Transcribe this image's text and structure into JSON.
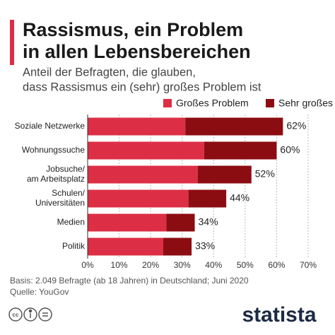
{
  "chart_data": {
    "type": "stacked-bar-horizontal",
    "title": [
      "Rassismus, ein Problem",
      "in allen Lebensbereichen"
    ],
    "subtitle": [
      "Anteil der Befragten, die glauben,",
      "dass Rassismus ein (sehr) großes Problem ist"
    ],
    "categories": [
      [
        "Soziale Netzwerke"
      ],
      [
        "Wohnungssuche"
      ],
      [
        "Jobsuche/",
        "am Arbeitsplatz"
      ],
      [
        "Schulen/",
        "Universitäten"
      ],
      [
        "Medien"
      ],
      [
        "Politik"
      ]
    ],
    "series": [
      {
        "name": "Großes Problem",
        "color": "#dc2f45",
        "values": [
          31,
          37,
          35,
          32,
          25,
          24
        ]
      },
      {
        "name": "Sehr großes Problem",
        "color": "#8b0d12",
        "values": [
          31,
          23,
          17,
          12,
          9,
          9
        ]
      }
    ],
    "totals": [
      62,
      60,
      52,
      44,
      34,
      33
    ],
    "total_labels": [
      "62%",
      "60%",
      "52%",
      "44%",
      "34%",
      "33%"
    ],
    "xlim": [
      0,
      70
    ],
    "xticks": [
      {
        "value": 0,
        "label": "0%"
      },
      {
        "value": 10,
        "label": "10%"
      },
      {
        "value": 20,
        "label": "20%"
      },
      {
        "value": 30,
        "label": "30%"
      },
      {
        "value": 40,
        "label": "40%"
      },
      {
        "value": 50,
        "label": "50%"
      },
      {
        "value": 60,
        "label": "60%"
      },
      {
        "value": 70,
        "label": "70%"
      }
    ],
    "grid": true,
    "footer": [
      "Basis: 2.049 Befragte (ab 18 Jahren) in Deutschland; Juni 2020",
      "Quelle: YouGov"
    ],
    "brand": "statista"
  }
}
